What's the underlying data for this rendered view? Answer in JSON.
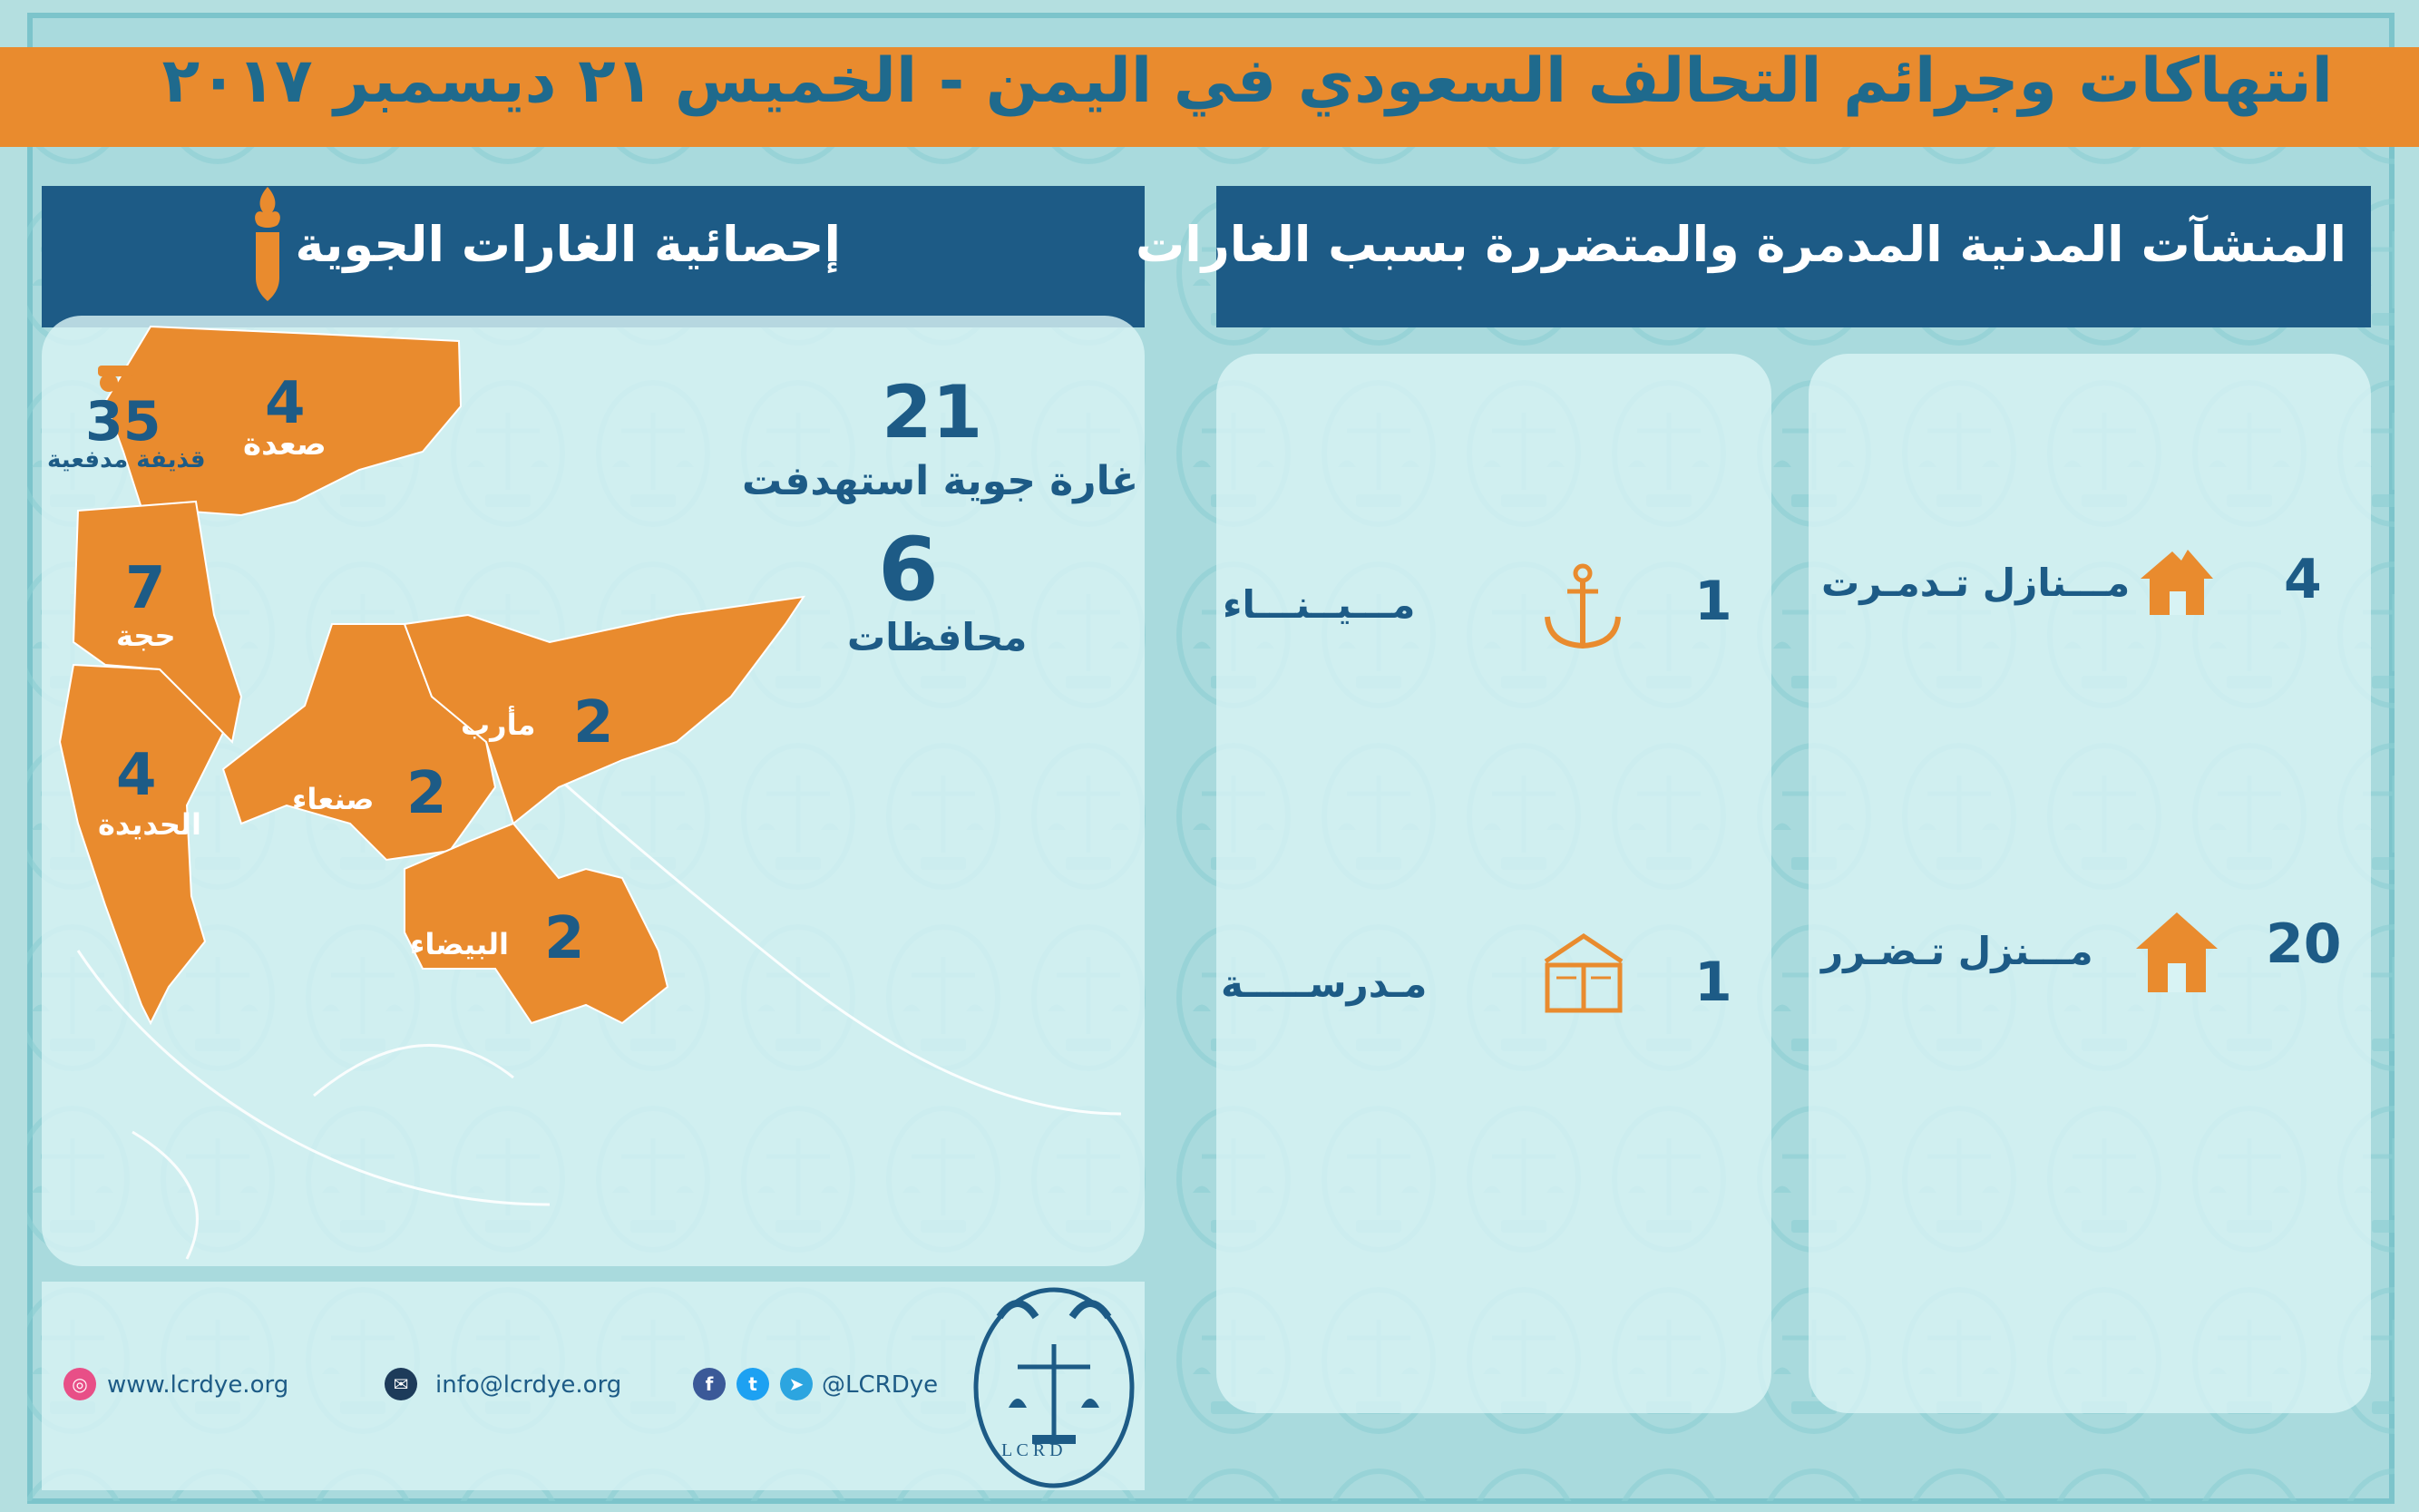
{
  "header": {
    "title": "انتهاكات وجرائم التحالف السعودي في اليمن - الخميس ٢١ ديسمبر ٢٠١٧"
  },
  "air_stats": {
    "section_title": "إحصائية الغارات الجوية",
    "raids_count": "21",
    "raids_label": "غارة جوية استهدفت",
    "governorates_count": "6",
    "governorates_label": "محافظات",
    "shells": {
      "count": "35",
      "label": "قذيفة مدفعية"
    },
    "regions": [
      {
        "name": "صعدة",
        "count": "4"
      },
      {
        "name": "حجة",
        "count": "7"
      },
      {
        "name": "الحديدة",
        "count": "4"
      },
      {
        "name": "صنعاء",
        "count": "2"
      },
      {
        "name": "مأرب",
        "count": "2"
      },
      {
        "name": "البيضاء",
        "count": "2"
      }
    ]
  },
  "facilities": {
    "section_title": "المنشآت المدنية المدمرة والمتضررة بسبب الغارات",
    "items": [
      {
        "count": "4",
        "label": "مـــنازل تـدمـرت",
        "icon": "destroyed-house-icon"
      },
      {
        "count": "20",
        "label": "مـــنزل تـضـرر",
        "icon": "house-icon"
      },
      {
        "count": "1",
        "label": "مـــيــنـــاء",
        "icon": "anchor-icon"
      },
      {
        "count": "1",
        "label": "مـدرســـــة",
        "icon": "school-book-icon"
      }
    ]
  },
  "footer": {
    "website": "www.lcrdye.org",
    "email": "info@lcrdye.org",
    "social_handle": "@LCRDye",
    "logo_text": "L C R D"
  },
  "colors": {
    "orange": "#e98b2e",
    "navy": "#1d5b86",
    "background": "#b4dfe0",
    "panel": "#d8f3f4"
  }
}
